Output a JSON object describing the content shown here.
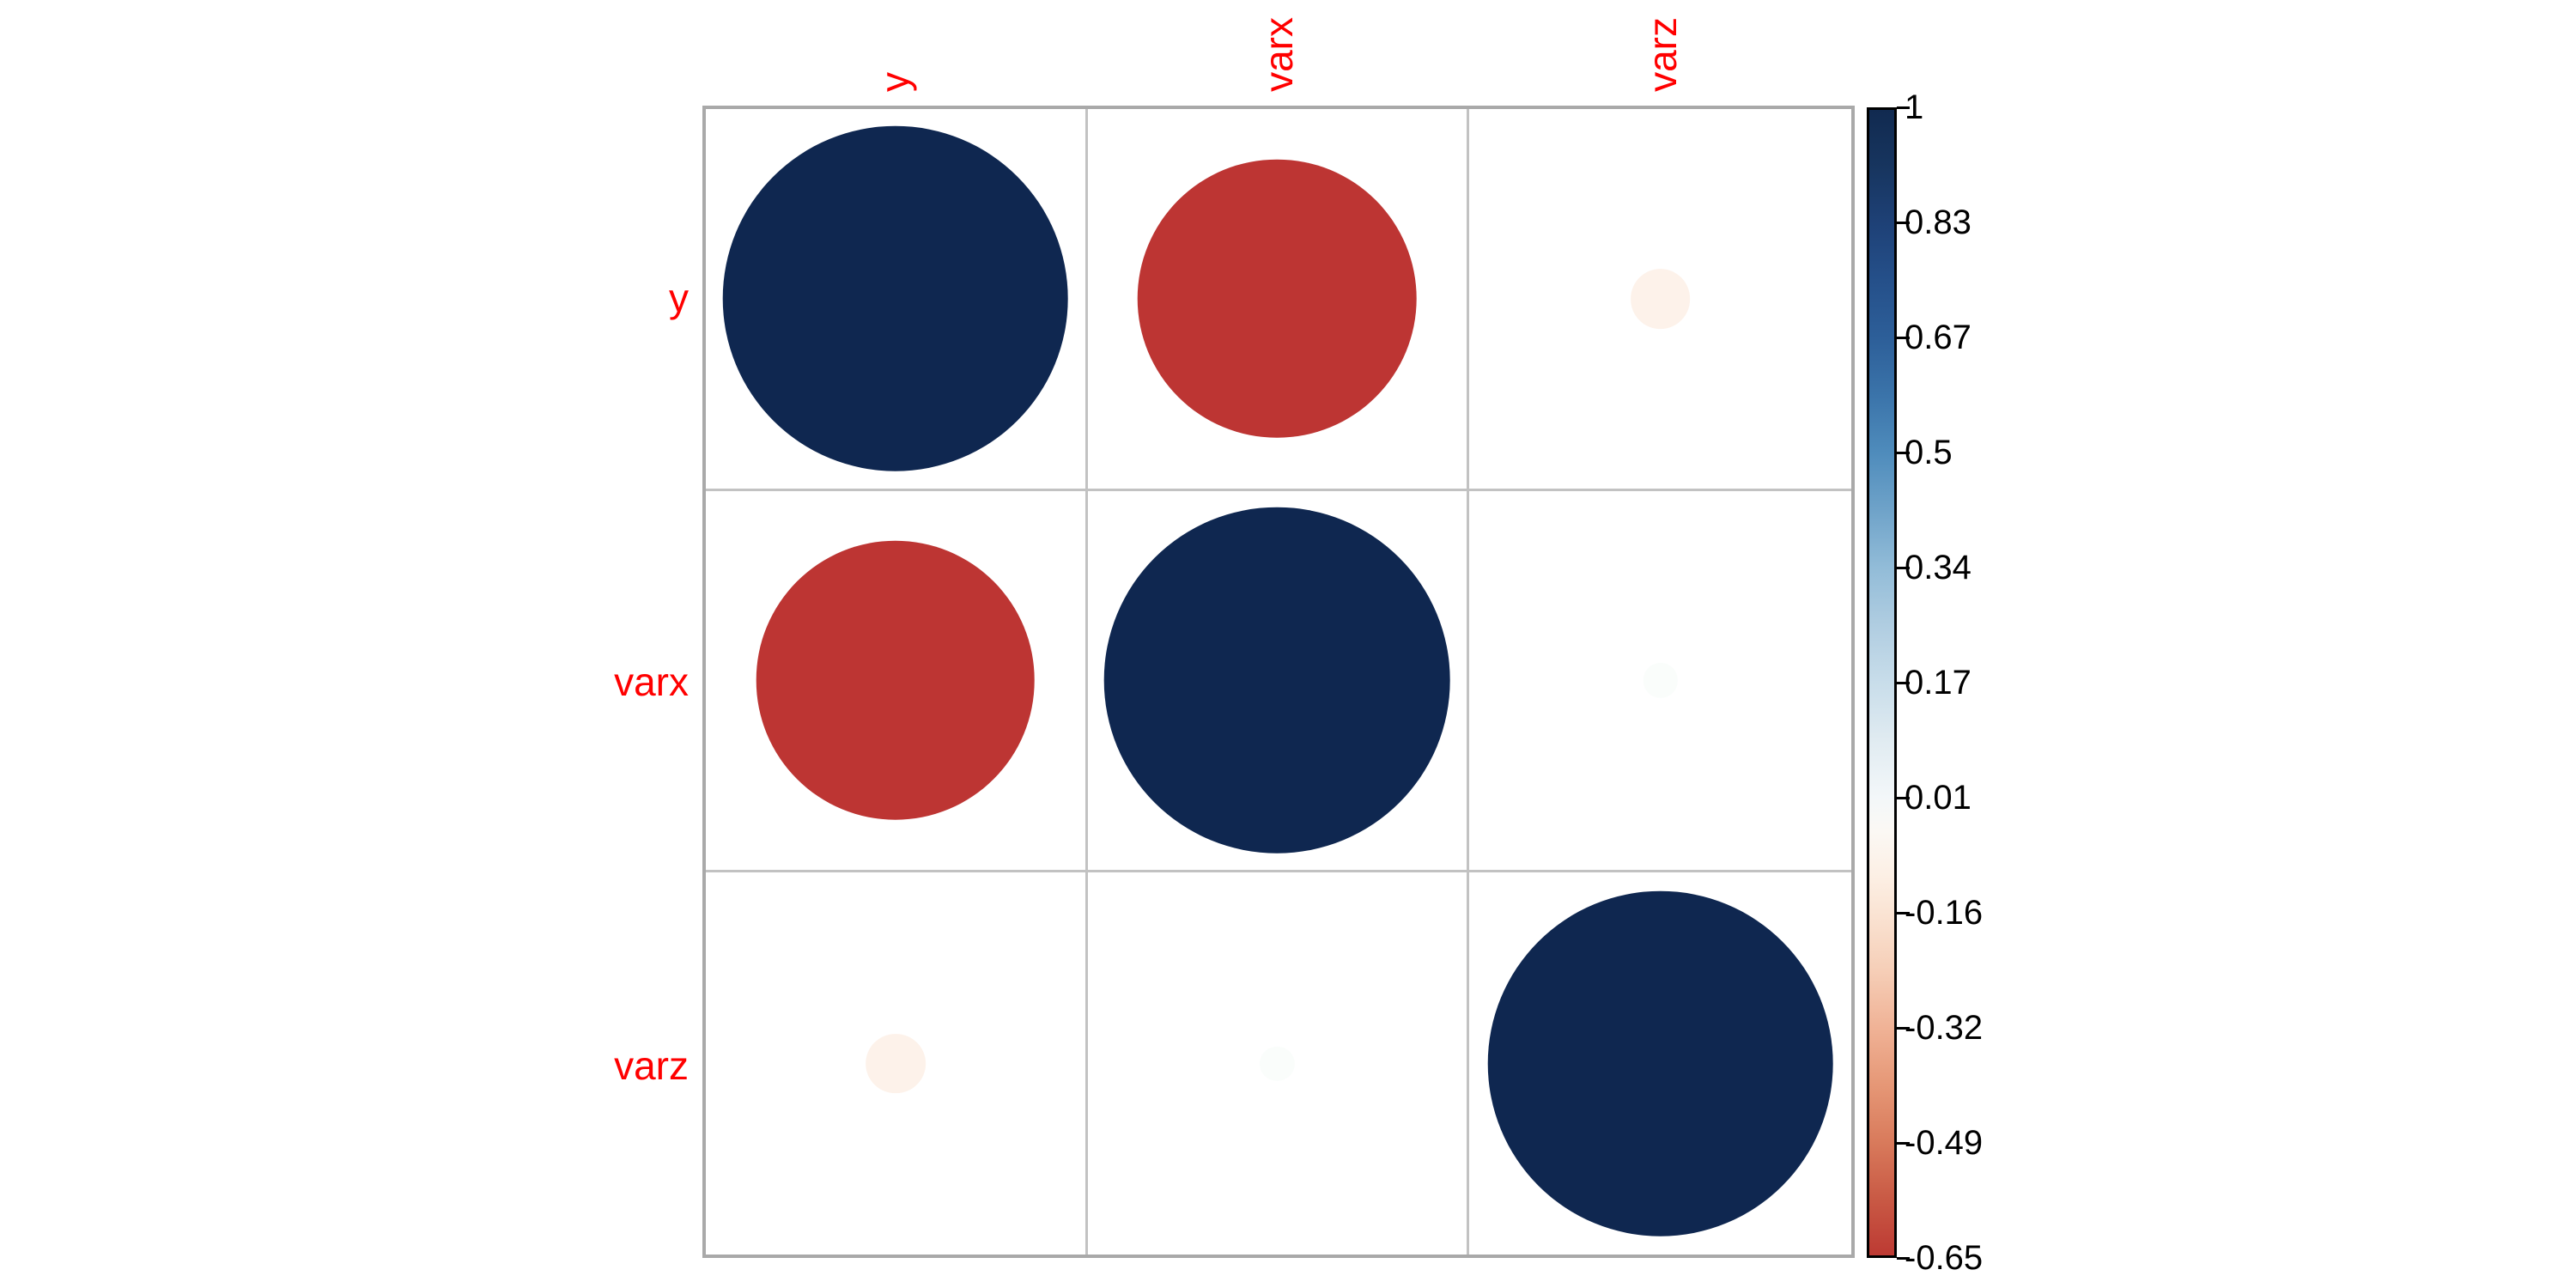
{
  "chart_data": {
    "type": "heatmap",
    "subtype": "correlation-matrix-circle-plot",
    "title": "",
    "variables": [
      "y",
      "varx",
      "varz"
    ],
    "matrix": [
      [
        1.0,
        -0.65,
        -0.03
      ],
      [
        -0.65,
        1.0,
        0.01
      ],
      [
        -0.03,
        0.01,
        1.0
      ]
    ],
    "cell_colors": [
      [
        "#0f2750",
        "#bd3533",
        "#fdf2ea"
      ],
      [
        "#bd3533",
        "#0f2750",
        "#fafdfb"
      ],
      [
        "#fdf2ea",
        "#fafdfb",
        "#0f2750"
      ]
    ],
    "variable_label_color": "#ff0000",
    "grid_line_color": "#c2c2c2",
    "grid_border_color": "#a9a9a9",
    "legend_position": "right",
    "colorbar": {
      "range": [
        -0.65,
        1
      ],
      "tick_labels": [
        "1",
        "0.83",
        "0.67",
        "0.5",
        "0.34",
        "0.17",
        "0.01",
        "-0.16",
        "-0.32",
        "-0.49",
        "-0.65"
      ],
      "border_color": "#000000",
      "tick_color": "#000000",
      "gradient_stops": [
        {
          "pos": 0.0,
          "color": "#112a50"
        },
        {
          "pos": 0.05,
          "color": "#17355f"
        },
        {
          "pos": 0.1,
          "color": "#1e4177"
        },
        {
          "pos": 0.15,
          "color": "#25508a"
        },
        {
          "pos": 0.2,
          "color": "#2d5f99"
        },
        {
          "pos": 0.25,
          "color": "#3b74aa"
        },
        {
          "pos": 0.3,
          "color": "#4f8cbc"
        },
        {
          "pos": 0.35,
          "color": "#6fa3c9"
        },
        {
          "pos": 0.4,
          "color": "#92bcd8"
        },
        {
          "pos": 0.45,
          "color": "#b0cde1"
        },
        {
          "pos": 0.5,
          "color": "#c8ddea"
        },
        {
          "pos": 0.55,
          "color": "#e0ebf1"
        },
        {
          "pos": 0.6,
          "color": "#f3f7f9"
        },
        {
          "pos": 0.63,
          "color": "#fbf8f4"
        },
        {
          "pos": 0.67,
          "color": "#fcefe4"
        },
        {
          "pos": 0.7,
          "color": "#fae4d4"
        },
        {
          "pos": 0.75,
          "color": "#f6cfb8"
        },
        {
          "pos": 0.8,
          "color": "#f0b397"
        },
        {
          "pos": 0.85,
          "color": "#e69877"
        },
        {
          "pos": 0.9,
          "color": "#d97b5c"
        },
        {
          "pos": 0.95,
          "color": "#c95a45"
        },
        {
          "pos": 1.0,
          "color": "#bd3a33"
        }
      ]
    }
  }
}
